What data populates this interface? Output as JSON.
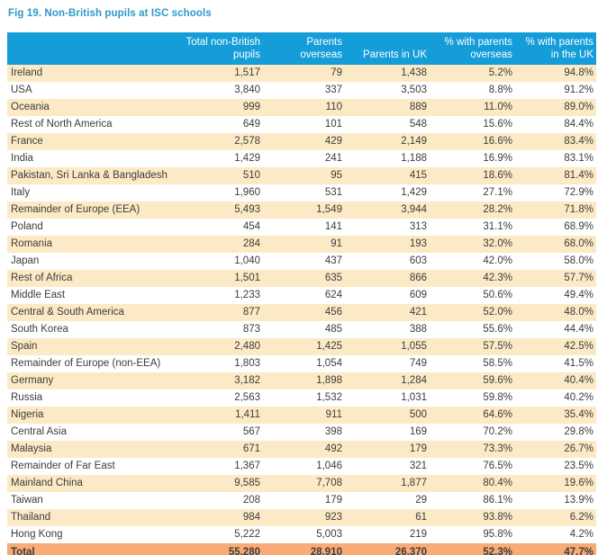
{
  "figure": {
    "title": "Fig 19. Non-British pupils at ISC schools"
  },
  "colors": {
    "header_bg": "#149dd8",
    "header_text": "#ffffff",
    "stripe_bg": "#fbeac5",
    "row_bg": "#ffffff",
    "total_bg": "#f8ab76",
    "title_text": "#2b9ac8",
    "body_text": "#3c3c3b"
  },
  "chart_data": {
    "type": "table",
    "title": "Fig 19. Non-British pupils at ISC schools",
    "columns": [
      "",
      "Total non-British pupils",
      "Parents overseas",
      "Parents in UK",
      "% with parents overseas",
      "% with parents in the UK"
    ],
    "rows": [
      [
        "Ireland",
        "1,517",
        "79",
        "1,438",
        "5.2%",
        "94.8%"
      ],
      [
        "USA",
        "3,840",
        "337",
        "3,503",
        "8.8%",
        "91.2%"
      ],
      [
        "Oceania",
        "999",
        "110",
        "889",
        "11.0%",
        "89.0%"
      ],
      [
        "Rest of North America",
        "649",
        "101",
        "548",
        "15.6%",
        "84.4%"
      ],
      [
        "France",
        "2,578",
        "429",
        "2,149",
        "16.6%",
        "83.4%"
      ],
      [
        "India",
        "1,429",
        "241",
        "1,188",
        "16.9%",
        "83.1%"
      ],
      [
        "Pakistan, Sri Lanka & Bangladesh",
        "510",
        "95",
        "415",
        "18.6%",
        "81.4%"
      ],
      [
        "Italy",
        "1,960",
        "531",
        "1,429",
        "27.1%",
        "72.9%"
      ],
      [
        "Remainder of Europe (EEA)",
        "5,493",
        "1,549",
        "3,944",
        "28.2%",
        "71.8%"
      ],
      [
        "Poland",
        "454",
        "141",
        "313",
        "31.1%",
        "68.9%"
      ],
      [
        "Romania",
        "284",
        "91",
        "193",
        "32.0%",
        "68.0%"
      ],
      [
        "Japan",
        "1,040",
        "437",
        "603",
        "42.0%",
        "58.0%"
      ],
      [
        "Rest of Africa",
        "1,501",
        "635",
        "866",
        "42.3%",
        "57.7%"
      ],
      [
        "Middle East",
        "1,233",
        "624",
        "609",
        "50.6%",
        "49.4%"
      ],
      [
        "Central & South America",
        "877",
        "456",
        "421",
        "52.0%",
        "48.0%"
      ],
      [
        "South Korea",
        "873",
        "485",
        "388",
        "55.6%",
        "44.4%"
      ],
      [
        "Spain",
        "2,480",
        "1,425",
        "1,055",
        "57.5%",
        "42.5%"
      ],
      [
        "Remainder of Europe (non-EEA)",
        "1,803",
        "1,054",
        "749",
        "58.5%",
        "41.5%"
      ],
      [
        "Germany",
        "3,182",
        "1,898",
        "1,284",
        "59.6%",
        "40.4%"
      ],
      [
        "Russia",
        "2,563",
        "1,532",
        "1,031",
        "59.8%",
        "40.2%"
      ],
      [
        "Nigeria",
        "1,411",
        "911",
        "500",
        "64.6%",
        "35.4%"
      ],
      [
        "Central Asia",
        "567",
        "398",
        "169",
        "70.2%",
        "29.8%"
      ],
      [
        "Malaysia",
        "671",
        "492",
        "179",
        "73.3%",
        "26.7%"
      ],
      [
        "Remainder of Far East",
        "1,367",
        "1,046",
        "321",
        "76.5%",
        "23.5%"
      ],
      [
        "Mainland China",
        "9,585",
        "7,708",
        "1,877",
        "80.4%",
        "19.6%"
      ],
      [
        "Taiwan",
        "208",
        "179",
        "29",
        "86.1%",
        "13.9%"
      ],
      [
        "Thailand",
        "984",
        "923",
        "61",
        "93.8%",
        "6.2%"
      ],
      [
        "Hong Kong",
        "5,222",
        "5,003",
        "219",
        "95.8%",
        "4.2%"
      ]
    ],
    "total_row": [
      "Total",
      "55,280",
      "28,910",
      "26,370",
      "52.3%",
      "47.7%"
    ],
    "layout": {
      "striped": true,
      "stripe_first_row": true,
      "header_position": "top",
      "numeric_alignment": "right"
    }
  }
}
